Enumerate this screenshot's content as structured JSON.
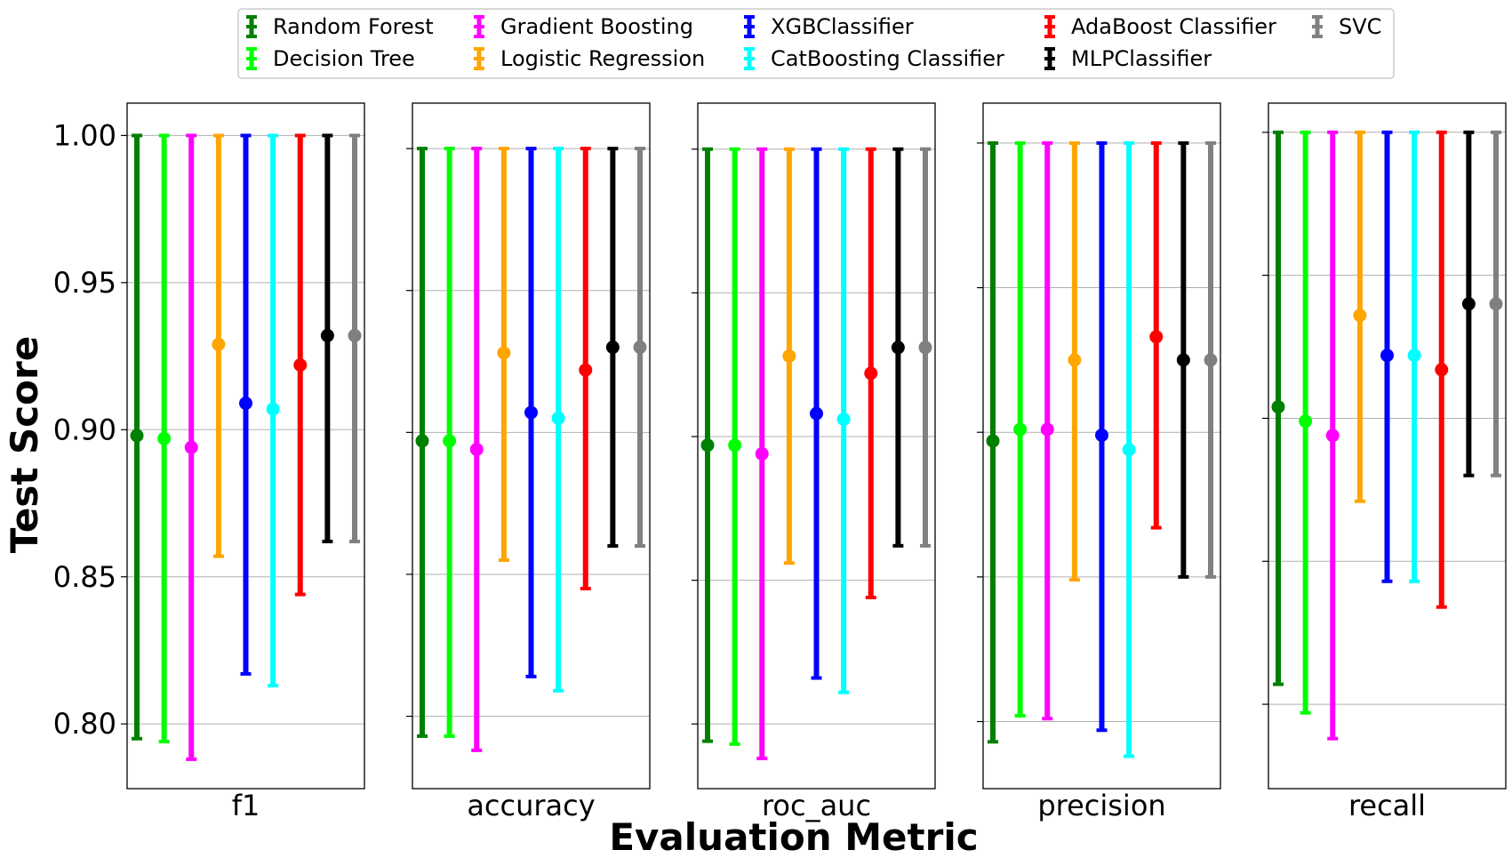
{
  "chart_data": {
    "type": "errorbar",
    "ylabel": "Test Score",
    "xlabel": "Evaluation Metric",
    "yticks": [
      "0.80",
      "0.85",
      "0.90",
      "0.95",
      "1.00"
    ],
    "legend": {
      "placement": "top-center",
      "columns": 5
    },
    "colors": {
      "Random Forest": "#008000",
      "Decision Tree": "#00ff00",
      "Gradient Boosting": "#ff00ff",
      "Logistic Regression": "#ffa500",
      "XGBClassifier": "#0000ff",
      "CatBoosting Classifier": "#00ffff",
      "AdaBoost Classifier": "#ff0000",
      "MLPClassifier": "#000000",
      "SVC": "#808080"
    },
    "models": [
      "Random Forest",
      "Decision Tree",
      "Gradient Boosting",
      "Logistic Regression",
      "XGBClassifier",
      "CatBoosting Classifier",
      "AdaBoost Classifier",
      "MLPClassifier",
      "SVC"
    ],
    "panels": [
      {
        "metric": "f1",
        "ylim": [
          0.778,
          1.011
        ],
        "grid": true,
        "points": [
          {
            "model": "Random Forest",
            "mean": 0.898,
            "low": 0.795,
            "high": 1.0
          },
          {
            "model": "Decision Tree",
            "mean": 0.897,
            "low": 0.794,
            "high": 1.0
          },
          {
            "model": "Gradient Boosting",
            "mean": 0.894,
            "low": 0.788,
            "high": 1.0
          },
          {
            "model": "Logistic Regression",
            "mean": 0.929,
            "low": 0.857,
            "high": 1.0
          },
          {
            "model": "XGBClassifier",
            "mean": 0.909,
            "low": 0.817,
            "high": 1.0
          },
          {
            "model": "CatBoosting Classifier",
            "mean": 0.907,
            "low": 0.813,
            "high": 1.0
          },
          {
            "model": "AdaBoost Classifier",
            "mean": 0.922,
            "low": 0.844,
            "high": 1.0
          },
          {
            "model": "MLPClassifier",
            "mean": 0.932,
            "low": 0.862,
            "high": 1.0
          },
          {
            "model": "SVC",
            "mean": 0.932,
            "low": 0.862,
            "high": 1.0
          }
        ]
      },
      {
        "metric": "accuracy",
        "ylim": [
          0.7745,
          1.016
        ],
        "grid": true,
        "points": [
          {
            "model": "Random Forest",
            "mean": 0.897,
            "low": 0.793,
            "high": 1.0
          },
          {
            "model": "Decision Tree",
            "mean": 0.897,
            "low": 0.793,
            "high": 1.0
          },
          {
            "model": "Gradient Boosting",
            "mean": 0.894,
            "low": 0.788,
            "high": 1.0
          },
          {
            "model": "Logistic Regression",
            "mean": 0.928,
            "low": 0.855,
            "high": 1.0
          },
          {
            "model": "XGBClassifier",
            "mean": 0.907,
            "low": 0.814,
            "high": 1.0
          },
          {
            "model": "CatBoosting Classifier",
            "mean": 0.905,
            "low": 0.809,
            "high": 1.0
          },
          {
            "model": "AdaBoost Classifier",
            "mean": 0.922,
            "low": 0.845,
            "high": 1.0
          },
          {
            "model": "MLPClassifier",
            "mean": 0.93,
            "low": 0.86,
            "high": 1.0
          },
          {
            "model": "SVC",
            "mean": 0.93,
            "low": 0.86,
            "high": 1.0
          }
        ]
      },
      {
        "metric": "roc_auc",
        "ylim": [
          0.7775,
          1.016
        ],
        "grid": true,
        "points": [
          {
            "model": "Random Forest",
            "mean": 0.897,
            "low": 0.794,
            "high": 1.0
          },
          {
            "model": "Decision Tree",
            "mean": 0.897,
            "low": 0.793,
            "high": 1.0
          },
          {
            "model": "Gradient Boosting",
            "mean": 0.894,
            "low": 0.788,
            "high": 1.0
          },
          {
            "model": "Logistic Regression",
            "mean": 0.928,
            "low": 0.856,
            "high": 1.0
          },
          {
            "model": "XGBClassifier",
            "mean": 0.908,
            "low": 0.816,
            "high": 1.0
          },
          {
            "model": "CatBoosting Classifier",
            "mean": 0.906,
            "low": 0.811,
            "high": 1.0
          },
          {
            "model": "AdaBoost Classifier",
            "mean": 0.922,
            "low": 0.844,
            "high": 1.0
          },
          {
            "model": "MLPClassifier",
            "mean": 0.931,
            "low": 0.862,
            "high": 1.0
          },
          {
            "model": "SVC",
            "mean": 0.931,
            "low": 0.862,
            "high": 1.0
          }
        ]
      },
      {
        "metric": "precision",
        "ylim": [
          0.7768,
          1.0138
        ],
        "grid": true,
        "points": [
          {
            "model": "Random Forest",
            "mean": 0.897,
            "low": 0.793,
            "high": 1.0
          },
          {
            "model": "Decision Tree",
            "mean": 0.901,
            "low": 0.802,
            "high": 1.0
          },
          {
            "model": "Gradient Boosting",
            "mean": 0.901,
            "low": 0.801,
            "high": 1.0
          },
          {
            "model": "Logistic Regression",
            "mean": 0.925,
            "low": 0.849,
            "high": 1.0
          },
          {
            "model": "XGBClassifier",
            "mean": 0.899,
            "low": 0.797,
            "high": 1.0
          },
          {
            "model": "CatBoosting Classifier",
            "mean": 0.894,
            "low": 0.788,
            "high": 1.0
          },
          {
            "model": "AdaBoost Classifier",
            "mean": 0.933,
            "low": 0.867,
            "high": 1.0
          },
          {
            "model": "MLPClassifier",
            "mean": 0.925,
            "low": 0.85,
            "high": 1.0
          },
          {
            "model": "SVC",
            "mean": 0.925,
            "low": 0.85,
            "high": 1.0
          }
        ]
      },
      {
        "metric": "recall",
        "ylim": [
          0.7705,
          1.0102
        ],
        "grid": true,
        "points": [
          {
            "model": "Random Forest",
            "mean": 0.904,
            "low": 0.807,
            "high": 1.0
          },
          {
            "model": "Decision Tree",
            "mean": 0.899,
            "low": 0.797,
            "high": 1.0
          },
          {
            "model": "Gradient Boosting",
            "mean": 0.894,
            "low": 0.788,
            "high": 1.0
          },
          {
            "model": "Logistic Regression",
            "mean": 0.936,
            "low": 0.871,
            "high": 1.0
          },
          {
            "model": "XGBClassifier",
            "mean": 0.922,
            "low": 0.843,
            "high": 1.0
          },
          {
            "model": "CatBoosting Classifier",
            "mean": 0.922,
            "low": 0.843,
            "high": 1.0
          },
          {
            "model": "AdaBoost Classifier",
            "mean": 0.917,
            "low": 0.834,
            "high": 1.0
          },
          {
            "model": "MLPClassifier",
            "mean": 0.94,
            "low": 0.88,
            "high": 1.0
          },
          {
            "model": "SVC",
            "mean": 0.94,
            "low": 0.88,
            "high": 1.0
          }
        ]
      }
    ]
  }
}
